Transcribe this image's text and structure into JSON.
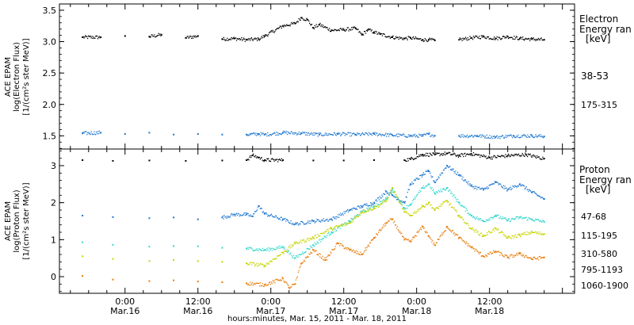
{
  "time_axis": {
    "title": "hours:minutes, Mar. 15, 2011 - Mar. 18, 2011",
    "ticks": [
      {
        "time": "0:00",
        "date": "Mar.16",
        "hour": 24
      },
      {
        "time": "12:00",
        "date": "Mar.16",
        "hour": 36
      },
      {
        "time": "0:00",
        "date": "Mar.17",
        "hour": 48
      },
      {
        "time": "12:00",
        "date": "Mar.17",
        "hour": 60
      },
      {
        "time": "0:00",
        "date": "Mar.18",
        "hour": 72
      },
      {
        "time": "12:00",
        "date": "Mar.18",
        "hour": 84
      }
    ],
    "xlim_hours": [
      13.2,
      98.0
    ]
  },
  "chart_data": [
    {
      "type": "scatter",
      "panel": "electron",
      "ylabel_line1": "ACE EPAM",
      "ylabel_line2": "log(Electron Flux)",
      "ylabel_line3": "[1/(cm²s ster MeV)]",
      "ylim": [
        1.29,
        3.6
      ],
      "yticks": [
        1.5,
        2.0,
        2.5,
        3.0,
        3.5
      ],
      "ytick_labels": [
        "1.5",
        "2.0",
        "2.5",
        "3.0",
        "3.5"
      ],
      "legend_title_line1": "Electron",
      "legend_title_line2": "Energy ran",
      "legend_unit": "[keV]",
      "series": [
        {
          "name": "38-53",
          "color": "#000000",
          "x": [
            17,
            20,
            24,
            28,
            30,
            34,
            36,
            40,
            42,
            44,
            46,
            47,
            50,
            52,
            53,
            54,
            55,
            56,
            58,
            60,
            62,
            63,
            64,
            65,
            66,
            68,
            70,
            71,
            73,
            74,
            75,
            79,
            81,
            83,
            85,
            87,
            89,
            91,
            93
          ],
          "y": [
            3.07,
            3.07,
            3.09,
            3.08,
            3.11,
            3.06,
            3.09,
            3.04,
            3.05,
            3.03,
            3.04,
            3.09,
            3.25,
            3.29,
            3.38,
            3.35,
            3.22,
            3.27,
            3.18,
            3.19,
            3.21,
            3.11,
            3.19,
            3.15,
            3.12,
            3.07,
            3.05,
            3.06,
            3.03,
            3.03,
            3.02,
            3.03,
            3.06,
            3.08,
            3.05,
            3.08,
            3.05,
            3.04,
            3.03
          ]
        },
        {
          "name": "175-315",
          "color": "#1f78d0",
          "x": [
            17,
            20,
            24,
            28,
            32,
            36,
            40,
            44,
            46,
            47,
            50,
            53,
            56,
            59,
            62,
            65,
            68,
            71,
            73,
            74,
            75,
            79,
            82,
            85,
            88,
            91,
            93
          ],
          "y": [
            1.54,
            1.55,
            1.53,
            1.55,
            1.52,
            1.53,
            1.52,
            1.52,
            1.53,
            1.52,
            1.55,
            1.54,
            1.52,
            1.53,
            1.52,
            1.53,
            1.51,
            1.5,
            1.5,
            1.53,
            1.5,
            1.5,
            1.5,
            1.48,
            1.5,
            1.5,
            1.49
          ]
        }
      ]
    },
    {
      "type": "scatter",
      "panel": "proton",
      "ylabel_line1": "ACE EPAM",
      "ylabel_line2": "log(Proton Flux)",
      "ylabel_line3": "[1/(cm²s ster MeV)]",
      "ylim": [
        -0.45,
        3.45
      ],
      "yticks": [
        0,
        1,
        2,
        3
      ],
      "ytick_labels": [
        "0",
        "1",
        "2",
        "3"
      ],
      "legend_title_line1": "Proton",
      "legend_title_line2": "Energy ran",
      "legend_unit": "[keV]",
      "series": [
        {
          "name": "47-68",
          "color": "#000000",
          "x": [
            17,
            22,
            28,
            34,
            40,
            44,
            45,
            46,
            47,
            50,
            55,
            60,
            65,
            70,
            71,
            73,
            75,
            77,
            79,
            81,
            84,
            87,
            90,
            93
          ],
          "y": [
            3.15,
            3.13,
            3.14,
            3.13,
            3.14,
            3.15,
            3.28,
            3.22,
            3.15,
            3.15,
            3.14,
            3.14,
            3.15,
            3.15,
            3.18,
            3.3,
            3.3,
            3.33,
            3.27,
            3.32,
            3.22,
            3.27,
            3.3,
            3.19
          ]
        },
        {
          "name": "115-195",
          "color": "#1f78d0",
          "x": [
            17,
            22,
            28,
            32,
            36,
            40,
            42,
            44,
            45,
            46,
            47,
            50,
            52,
            55,
            58,
            61,
            63,
            65,
            67,
            68,
            70,
            71,
            73,
            74,
            75,
            77,
            79,
            81,
            83,
            85,
            87,
            89,
            91,
            93
          ],
          "y": [
            1.65,
            1.61,
            1.58,
            1.6,
            1.55,
            1.6,
            1.68,
            1.68,
            1.63,
            1.91,
            1.7,
            1.55,
            1.42,
            1.5,
            1.55,
            1.8,
            1.9,
            2.0,
            2.3,
            2.2,
            2.0,
            2.5,
            2.75,
            2.85,
            2.55,
            3.0,
            2.75,
            2.45,
            2.35,
            2.55,
            2.35,
            2.5,
            2.28,
            2.1
          ]
        },
        {
          "name": "310-580",
          "color": "#33d6cc",
          "x": [
            17,
            22,
            28,
            32,
            36,
            40,
            44,
            47,
            50,
            52,
            55,
            58,
            61,
            63,
            65,
            67,
            68,
            70,
            71,
            73,
            74,
            75,
            77,
            79,
            81,
            83,
            85,
            87,
            89,
            91,
            93
          ],
          "y": [
            0.93,
            0.86,
            0.81,
            0.83,
            0.82,
            0.78,
            0.76,
            0.72,
            0.8,
            0.5,
            0.85,
            1.2,
            1.5,
            1.75,
            1.9,
            2.1,
            2.35,
            1.85,
            1.95,
            2.4,
            2.5,
            2.25,
            2.4,
            2.0,
            1.65,
            1.5,
            1.65,
            1.52,
            1.6,
            1.55,
            1.48
          ]
        },
        {
          "name": "795-1193",
          "color": "#c8d400",
          "x": [
            17,
            22,
            28,
            32,
            36,
            40,
            44,
            47,
            50,
            52,
            55,
            58,
            61,
            63,
            65,
            67,
            68,
            70,
            71,
            73,
            74,
            75,
            77,
            79,
            81,
            83,
            85,
            87,
            89,
            91,
            93
          ],
          "y": [
            0.55,
            0.48,
            0.42,
            0.45,
            0.42,
            0.4,
            0.36,
            0.3,
            0.65,
            0.9,
            1.05,
            1.3,
            1.45,
            1.75,
            1.85,
            2.05,
            2.4,
            1.75,
            1.65,
            1.9,
            2.0,
            1.8,
            2.05,
            1.65,
            1.3,
            1.1,
            1.3,
            1.05,
            1.12,
            1.2,
            1.15
          ]
        },
        {
          "name": "1060-1900",
          "color": "#e87d0c",
          "x": [
            17,
            22,
            28,
            32,
            36,
            40,
            44,
            47,
            50,
            51,
            52,
            53,
            55,
            57,
            59,
            61,
            63,
            65,
            67,
            68,
            70,
            71,
            73,
            74,
            75,
            77,
            79,
            81,
            83,
            85,
            87,
            89,
            91,
            93
          ],
          "y": [
            0.02,
            -0.08,
            -0.12,
            -0.1,
            -0.13,
            -0.15,
            -0.18,
            -0.22,
            -0.05,
            -0.3,
            -0.2,
            0.35,
            0.72,
            0.45,
            0.9,
            0.72,
            0.6,
            1.05,
            1.45,
            1.55,
            1.0,
            0.95,
            1.35,
            1.1,
            0.85,
            1.35,
            1.05,
            0.8,
            0.55,
            0.68,
            0.52,
            0.62,
            0.48,
            0.52
          ]
        }
      ]
    }
  ]
}
